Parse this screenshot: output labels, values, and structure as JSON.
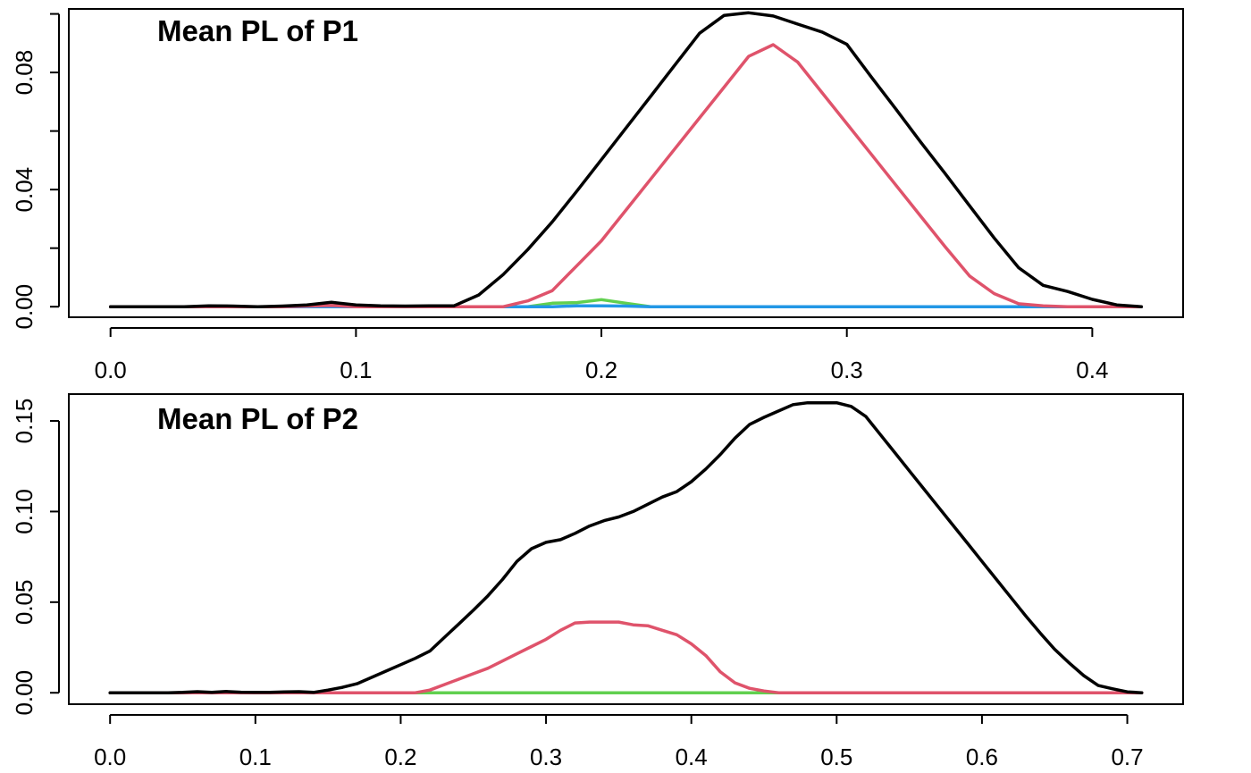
{
  "chart_data": [
    {
      "type": "line",
      "title": "Mean PL of P1",
      "xlim": [
        -0.017,
        0.437
      ],
      "ylim": [
        -0.0036,
        0.1017
      ],
      "xticks": [
        0.0,
        0.1,
        0.2,
        0.3,
        0.4
      ],
      "xtick_labels": [
        "0.0",
        "0.1",
        "0.2",
        "0.3",
        "0.4"
      ],
      "yticks": [
        0.0,
        0.02,
        0.04,
        0.06,
        0.08,
        0.1
      ],
      "ytick_labels": [
        "0.00",
        "",
        "0.04",
        "",
        "0.08",
        ""
      ],
      "series": [
        {
          "color": "#000000",
          "x": [
            0.0,
            0.01,
            0.02,
            0.03,
            0.04,
            0.05,
            0.06,
            0.07,
            0.08,
            0.09,
            0.1,
            0.11,
            0.12,
            0.13,
            0.14,
            0.15,
            0.16,
            0.17,
            0.18,
            0.19,
            0.2,
            0.21,
            0.22,
            0.23,
            0.24,
            0.25,
            0.26,
            0.27,
            0.28,
            0.29,
            0.3,
            0.31,
            0.32,
            0.33,
            0.34,
            0.35,
            0.36,
            0.37,
            0.38,
            0.39,
            0.4,
            0.41,
            0.42
          ],
          "y": [
            0.0,
            0.0,
            0.0,
            0.0,
            0.0003,
            0.0002,
            0.0,
            0.0002,
            0.0006,
            0.0015,
            0.0006,
            0.0003,
            0.0002,
            0.0003,
            0.0003,
            0.004,
            0.011,
            0.0195,
            0.029,
            0.0395,
            0.0502,
            0.061,
            0.0718,
            0.0826,
            0.0934,
            0.0995,
            0.1004,
            0.0993,
            0.0965,
            0.0938,
            0.0896,
            0.0784,
            0.0675,
            0.0563,
            0.0455,
            0.0345,
            0.0235,
            0.0133,
            0.0073,
            0.0052,
            0.0025,
            0.0006,
            0.0
          ]
        },
        {
          "color": "#DF536B",
          "x": [
            0.0,
            0.01,
            0.02,
            0.03,
            0.04,
            0.05,
            0.06,
            0.07,
            0.08,
            0.09,
            0.1,
            0.11,
            0.12,
            0.13,
            0.14,
            0.15,
            0.16,
            0.17,
            0.18,
            0.19,
            0.2,
            0.21,
            0.22,
            0.23,
            0.24,
            0.25,
            0.26,
            0.27,
            0.28,
            0.29,
            0.3,
            0.31,
            0.32,
            0.33,
            0.34,
            0.35,
            0.36,
            0.37,
            0.38,
            0.39,
            0.4,
            0.41,
            0.42
          ],
          "y": [
            0.0,
            0.0,
            0.0,
            0.0,
            0.0,
            0.0,
            0.0,
            0.0,
            0.0002,
            0.0004,
            0.0,
            0.0,
            0.0,
            0.0,
            0.0,
            0.0,
            0.0,
            0.002,
            0.0055,
            0.014,
            0.0225,
            0.033,
            0.0435,
            0.054,
            0.0645,
            0.075,
            0.0855,
            0.0895,
            0.0835,
            0.073,
            0.0625,
            0.052,
            0.0415,
            0.031,
            0.0205,
            0.0105,
            0.0045,
            0.001,
            0.0003,
            0.0,
            0.0,
            0.0,
            0.0
          ]
        },
        {
          "color": "#2297E6",
          "x": [
            0.0,
            0.18,
            0.19,
            0.2,
            0.21,
            0.22,
            0.42
          ],
          "y": [
            0.0,
            0.0,
            0.0003,
            0.0003,
            0.0002,
            0.0,
            0.0
          ]
        },
        {
          "color": "#61D04F",
          "x": [
            0.0,
            0.17,
            0.18,
            0.19,
            0.2,
            0.21,
            0.22,
            0.36,
            0.37,
            0.38
          ],
          "y": [
            0.0,
            0.0,
            0.0012,
            0.0014,
            0.0024,
            0.0012,
            0.0,
            0.0,
            0.0,
            0.0
          ]
        }
      ]
    },
    {
      "type": "line",
      "title": "Mean PL of P2",
      "xlim": [
        -0.0284,
        0.7384
      ],
      "ylim": [
        -0.0063,
        0.1648
      ],
      "xticks": [
        0.0,
        0.1,
        0.2,
        0.3,
        0.4,
        0.5,
        0.6,
        0.7
      ],
      "xtick_labels": [
        "0.0",
        "0.1",
        "0.2",
        "0.3",
        "0.4",
        "0.5",
        "0.6",
        "0.7"
      ],
      "yticks": [
        0.0,
        0.05,
        0.1,
        0.15
      ],
      "ytick_labels": [
        "0.00",
        "0.05",
        "0.10",
        "0.15"
      ],
      "series": [
        {
          "color": "#000000",
          "x": [
            0.0,
            0.01,
            0.02,
            0.03,
            0.04,
            0.05,
            0.06,
            0.07,
            0.08,
            0.09,
            0.1,
            0.11,
            0.12,
            0.13,
            0.14,
            0.15,
            0.16,
            0.17,
            0.18,
            0.19,
            0.2,
            0.21,
            0.22,
            0.23,
            0.24,
            0.25,
            0.26,
            0.27,
            0.28,
            0.29,
            0.3,
            0.31,
            0.32,
            0.33,
            0.34,
            0.35,
            0.36,
            0.37,
            0.38,
            0.39,
            0.4,
            0.41,
            0.42,
            0.43,
            0.44,
            0.45,
            0.46,
            0.47,
            0.48,
            0.49,
            0.5,
            0.51,
            0.52,
            0.53,
            0.54,
            0.55,
            0.56,
            0.57,
            0.58,
            0.59,
            0.6,
            0.61,
            0.62,
            0.63,
            0.64,
            0.65,
            0.66,
            0.67,
            0.68,
            0.69,
            0.7,
            0.71
          ],
          "y": [
            0.0,
            0.0,
            0.0,
            0.0,
            0.0,
            0.0002,
            0.0006,
            0.0002,
            0.0007,
            0.0003,
            0.0002,
            0.0002,
            0.0005,
            0.0006,
            0.0002,
            0.0015,
            0.003,
            0.005,
            0.0085,
            0.012,
            0.0155,
            0.019,
            0.023,
            0.0305,
            0.038,
            0.0455,
            0.0535,
            0.0625,
            0.0725,
            0.0795,
            0.083,
            0.0845,
            0.088,
            0.092,
            0.095,
            0.097,
            0.1,
            0.104,
            0.108,
            0.111,
            0.1165,
            0.1235,
            0.1315,
            0.1405,
            0.148,
            0.152,
            0.1555,
            0.159,
            0.16,
            0.16,
            0.16,
            0.158,
            0.1525,
            0.1425,
            0.1325,
            0.1225,
            0.1125,
            0.1025,
            0.0925,
            0.0825,
            0.0725,
            0.0625,
            0.0525,
            0.0425,
            0.033,
            0.024,
            0.0165,
            0.0095,
            0.004,
            0.0022,
            0.0005,
            0.0
          ]
        },
        {
          "color": "#DF536B",
          "x": [
            0.0,
            0.21,
            0.22,
            0.23,
            0.24,
            0.25,
            0.26,
            0.27,
            0.28,
            0.29,
            0.3,
            0.31,
            0.32,
            0.33,
            0.34,
            0.35,
            0.36,
            0.37,
            0.38,
            0.39,
            0.4,
            0.41,
            0.42,
            0.43,
            0.44,
            0.45,
            0.46,
            0.71
          ],
          "y": [
            0.0,
            0.0,
            0.0015,
            0.0045,
            0.0075,
            0.0105,
            0.0135,
            0.0175,
            0.0215,
            0.0255,
            0.0295,
            0.0345,
            0.0385,
            0.039,
            0.039,
            0.039,
            0.0375,
            0.037,
            0.0345,
            0.032,
            0.027,
            0.0205,
            0.0115,
            0.0055,
            0.0025,
            0.001,
            0.0,
            0.0
          ]
        },
        {
          "color": "#61D04F",
          "x": [
            0.0,
            0.21,
            0.22,
            0.46
          ],
          "y": [
            0.0,
            0.0,
            0.0,
            0.0
          ]
        },
        {
          "color": "#2297E6",
          "x": [
            0.0,
            0.46
          ],
          "y": [
            0.0,
            0.0
          ]
        }
      ]
    }
  ]
}
